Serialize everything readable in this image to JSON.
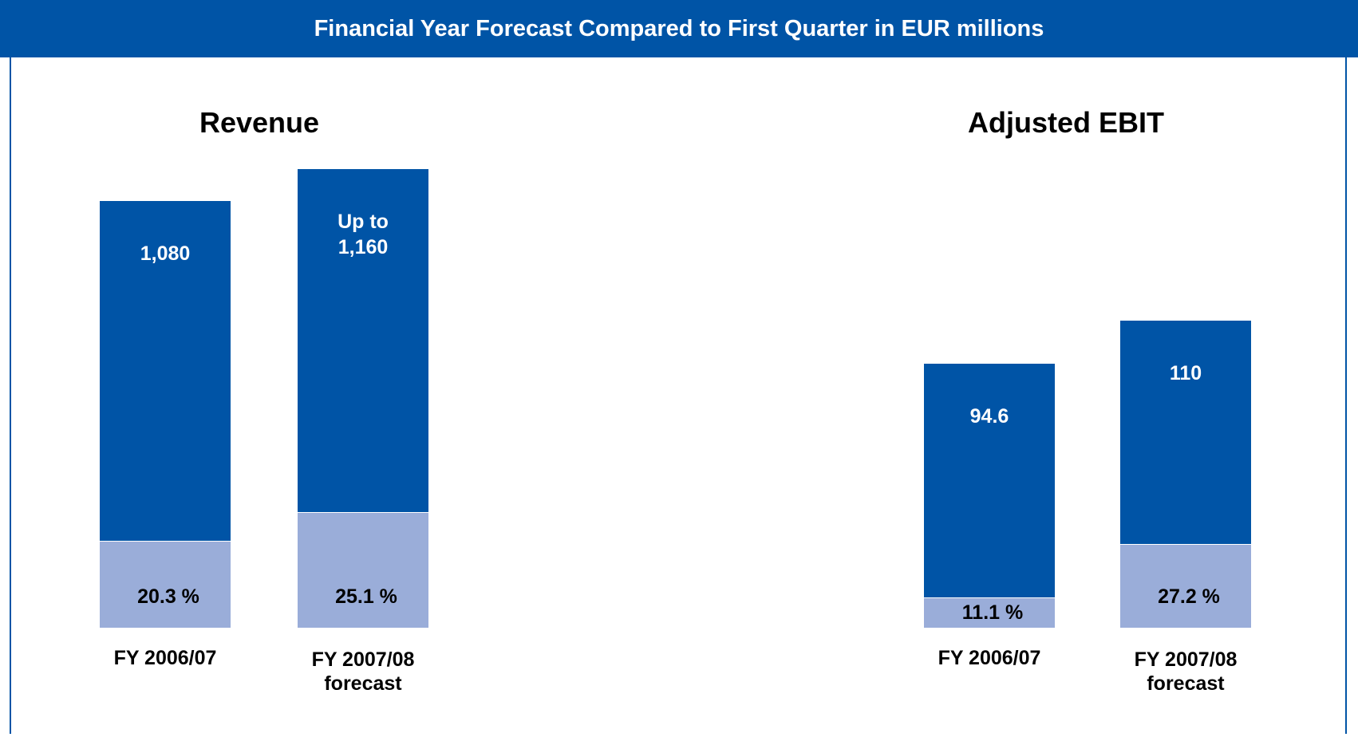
{
  "title": "Financial Year Forecast Compared to First Quarter in EUR millions",
  "chart_data": [
    {
      "type": "bar",
      "title": "Revenue",
      "categories": [
        "FY 2006/07",
        "FY 2007/08 forecast"
      ],
      "values": [
        1080,
        1160
      ],
      "value_labels": [
        "1,080",
        "Up to 1,160"
      ],
      "shares": [
        20.3,
        25.1
      ],
      "share_labels": [
        "20.3 %",
        "25.1 %"
      ],
      "color": "#0054a6",
      "share_color": "#9aadd9"
    },
    {
      "type": "bar",
      "title": "Adjusted EBIT",
      "categories": [
        "FY 2006/07",
        "FY 2007/08 forecast"
      ],
      "values": [
        94.6,
        110
      ],
      "value_labels": [
        "94.6",
        "110"
      ],
      "shares": [
        11.1,
        27.2
      ],
      "share_labels": [
        "11.1 %",
        "27.2 %"
      ],
      "color": "#0054a6",
      "share_color": "#9aadd9"
    }
  ]
}
